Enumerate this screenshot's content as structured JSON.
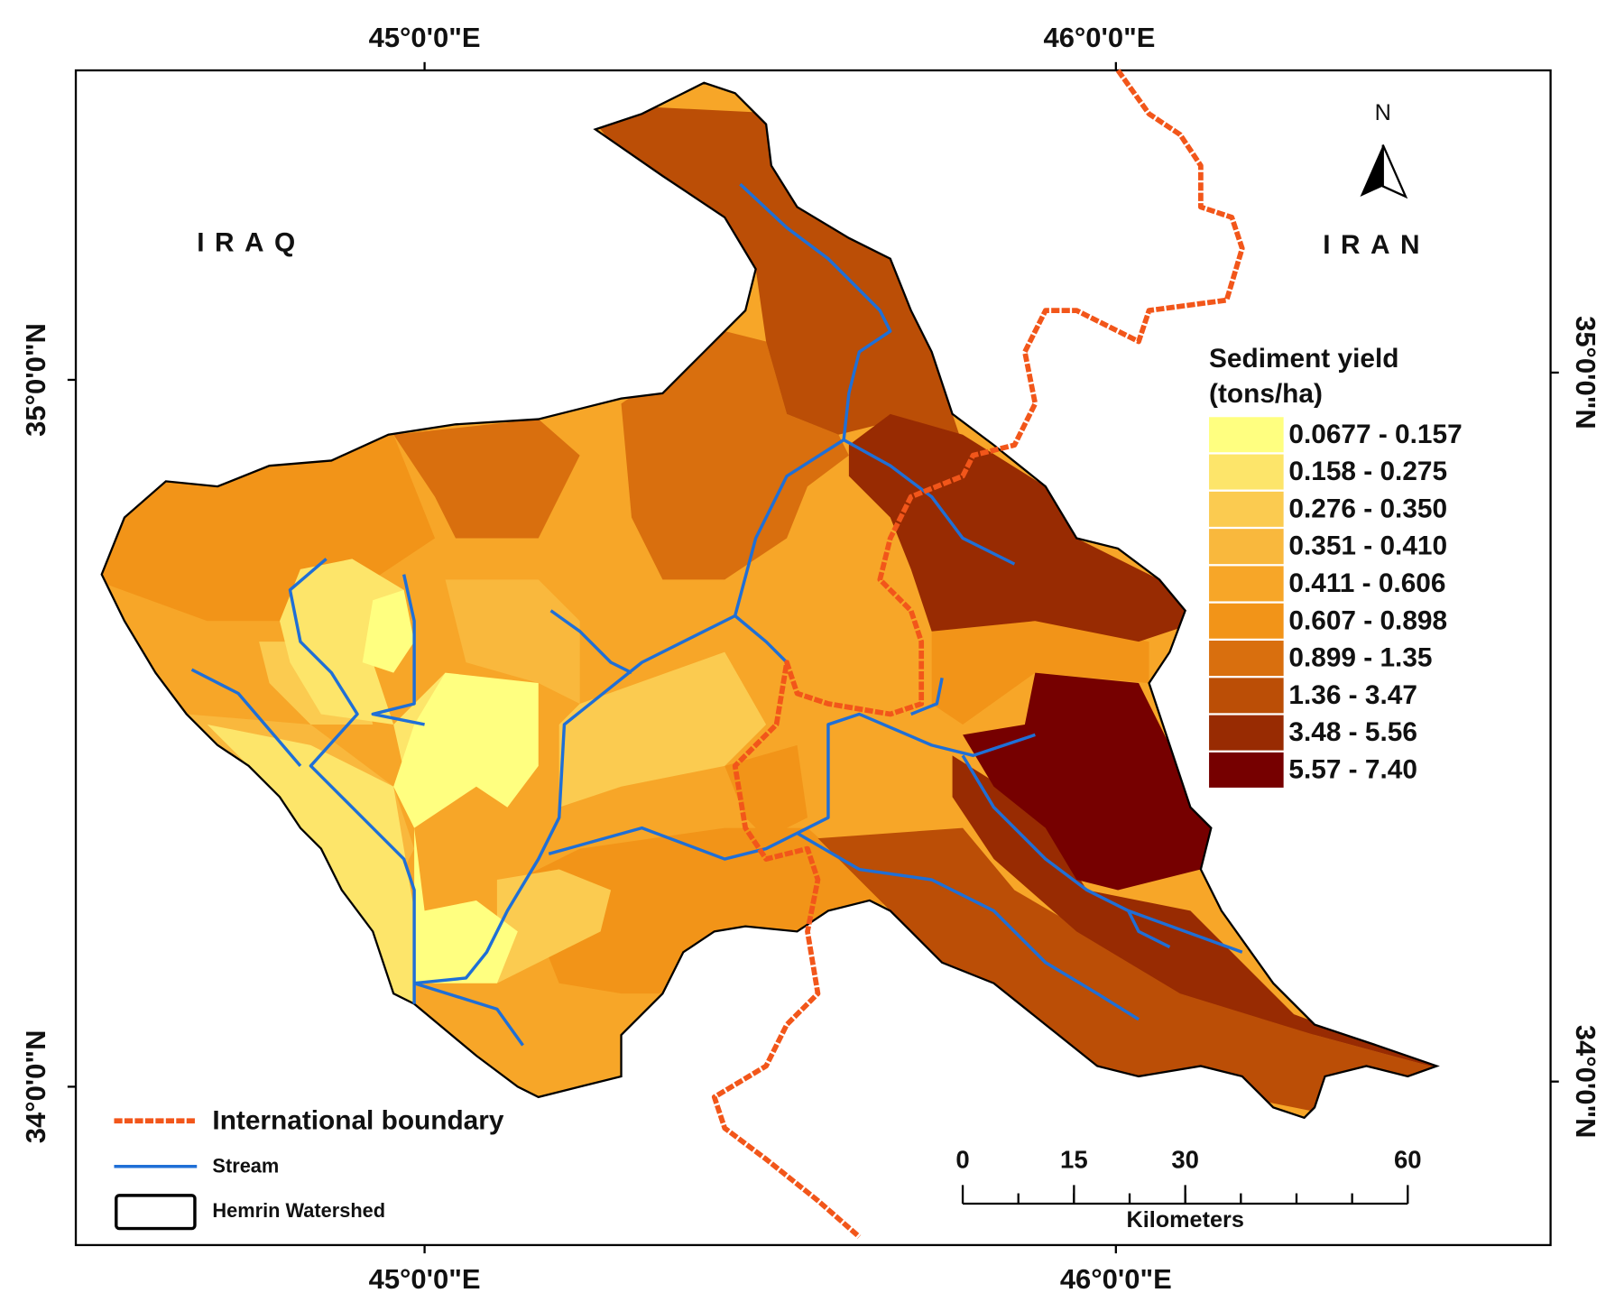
{
  "map": {
    "graticule": {
      "top": [
        "45°0'0\"E",
        "46°0'0\"E"
      ],
      "bottom": [
        "45°0'0\"E",
        "46°0'0\"E"
      ],
      "left": [
        "35°0'0\"N",
        "34°0'0\"N"
      ],
      "right": [
        "35°0'0\"N",
        "34°0'0\"N"
      ]
    },
    "country_labels": [
      "IRAQ",
      "IRAN"
    ],
    "north_arrow": "N",
    "legend": {
      "title": "Sediment yield",
      "unit": "(tons/ha)",
      "classes": [
        {
          "label": "0.0677 - 0.157",
          "color": "#ffff80"
        },
        {
          "label": "0.158 - 0.275",
          "color": "#fde56a"
        },
        {
          "label": "0.276 - 0.350",
          "color": "#fbcb50"
        },
        {
          "label": "0.351 - 0.410",
          "color": "#f9b83d"
        },
        {
          "label": "0.411 - 0.606",
          "color": "#f7a628"
        },
        {
          "label": "0.607 - 0.898",
          "color": "#f29418"
        },
        {
          "label": "0.899 - 1.35",
          "color": "#d96f0e"
        },
        {
          "label": "1.36 - 3.47",
          "color": "#bb4e06"
        },
        {
          "label": "3.48 - 5.56",
          "color": "#982b02"
        },
        {
          "label": "5.57 - 7.40",
          "color": "#760000"
        }
      ]
    },
    "layer_legend": [
      "International boundary",
      "Stream",
      "Hemrin Watershed"
    ],
    "scale_bar": {
      "ticks": [
        0,
        15,
        30,
        60
      ],
      "unit": "Kilometers"
    }
  }
}
